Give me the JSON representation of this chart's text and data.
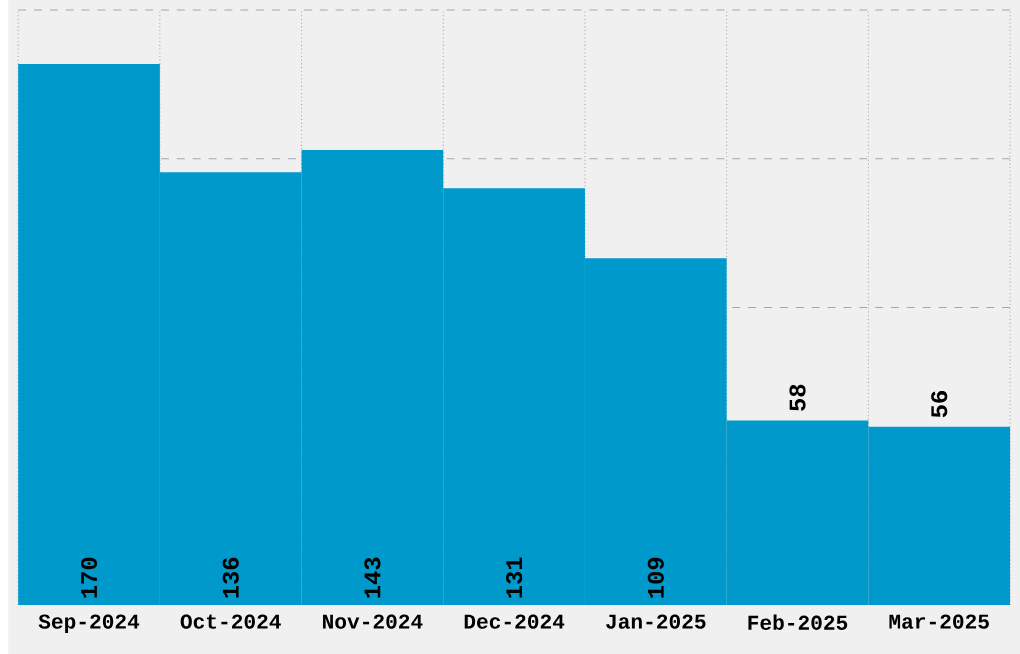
{
  "chart_data": {
    "type": "bar",
    "categories": [
      "Sep-2024",
      "Oct-2024",
      "Nov-2024",
      "Dec-2024",
      "Jan-2025",
      "Feb-2025",
      "Mar-2025"
    ],
    "values": [
      170,
      136,
      143,
      131,
      109,
      58,
      56
    ],
    "color": "#0099cc",
    "data_labels": true,
    "grid": true,
    "relative": false,
    "ylim": [
      0,
      187
    ],
    "yticks": [
      {
        "value": 46.75,
        "label": null
      },
      {
        "value": 93.5,
        "label": null
      },
      {
        "value": 140.25,
        "label": null
      },
      {
        "value": 187,
        "label": null
      }
    ],
    "tick_labels": "x"
  }
}
